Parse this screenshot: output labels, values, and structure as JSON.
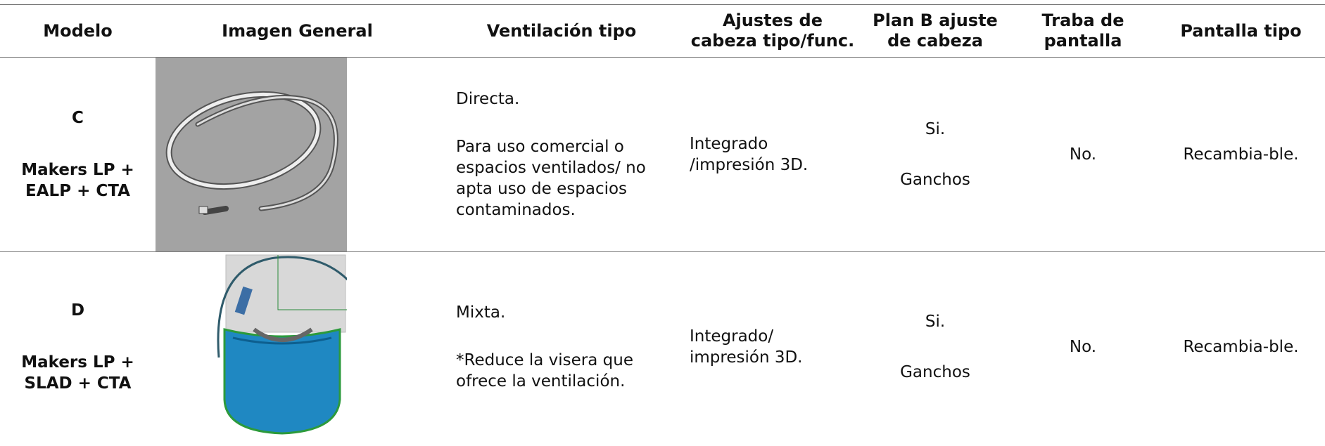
{
  "table": {
    "header": [
      "Modelo",
      "Imagen General",
      "Ventilación tipo",
      "Ajustes de cabeza tipo/func.",
      "Plan B ajuste de cabeza",
      "Traba de pantalla",
      "Pantalla tipo"
    ],
    "rows": [
      {
        "modelo": [
          "C",
          "Makers LP + EALP + CTA"
        ],
        "ventilacion": [
          "Directa.",
          "Para uso comercial o espacios ventilados/ no apta uso de espacios contaminados."
        ],
        "ajustes": "Integrado /impresión 3D.",
        "plan_b": [
          "Si.",
          "Ganchos"
        ],
        "traba": "No.",
        "pantalla": "Recambia-ble."
      },
      {
        "modelo": [
          "D",
          "Makers LP + SLAD + CTA"
        ],
        "ventilacion": [
          "Mixta.",
          "*Reduce la visera que ofrece la ventilación."
        ],
        "ajustes": "Integrado/ impresión 3D.",
        "plan_b": [
          "Si.",
          "Ganchos"
        ],
        "traba": "No.",
        "pantalla": "Recambia-ble."
      }
    ]
  }
}
